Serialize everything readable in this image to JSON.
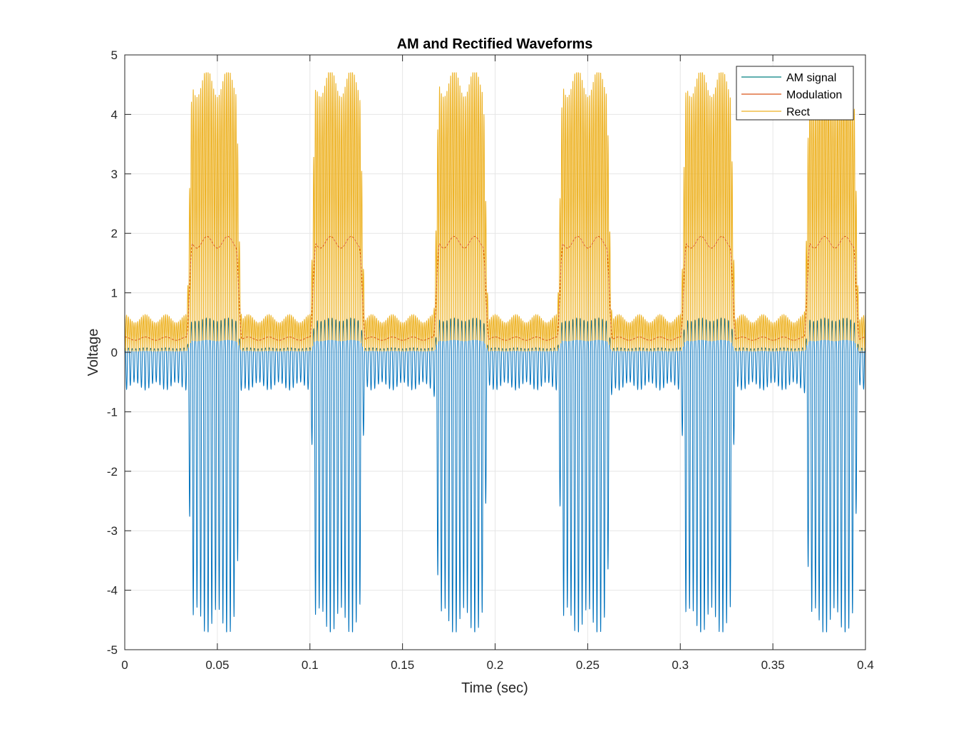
{
  "chart_data": {
    "type": "line",
    "title": "AM and Rectified Waveforms",
    "xlabel": "Time (sec)",
    "ylabel": "Voltage",
    "xlim": [
      0,
      0.4
    ],
    "ylim": [
      -5,
      5
    ],
    "xticks": [
      0,
      0.05,
      0.1,
      0.15,
      0.2,
      0.25,
      0.3,
      0.35,
      0.4
    ],
    "xtick_labels": [
      "0",
      "0.05",
      "0.1",
      "0.15",
      "0.2",
      "0.25",
      "0.3",
      "0.35",
      "0.4"
    ],
    "yticks": [
      -5,
      -4,
      -3,
      -2,
      -1,
      0,
      1,
      2,
      3,
      4,
      5
    ],
    "ytick_labels": [
      "-5",
      "-4",
      "-3",
      "-2",
      "-1",
      "0",
      "1",
      "2",
      "3",
      "4",
      "5"
    ],
    "grid": true,
    "legend_position": "top-right",
    "series": [
      {
        "name": "AM signal",
        "color": "#0072BD",
        "description_values": {
          "pulse_period": 0.0667,
          "pulse_duty": 0.45,
          "high_peak": 4.6,
          "low_peak": 0.7,
          "carrier_cycles_per_second": 500
        }
      },
      {
        "name": "Modulation",
        "color": "#D95319",
        "description_values": {
          "high_level": 1.85,
          "low_level": 0.23
        }
      },
      {
        "name": "Rect",
        "color": "#EDB120",
        "description_values": {
          "rectified": true
        }
      }
    ]
  }
}
